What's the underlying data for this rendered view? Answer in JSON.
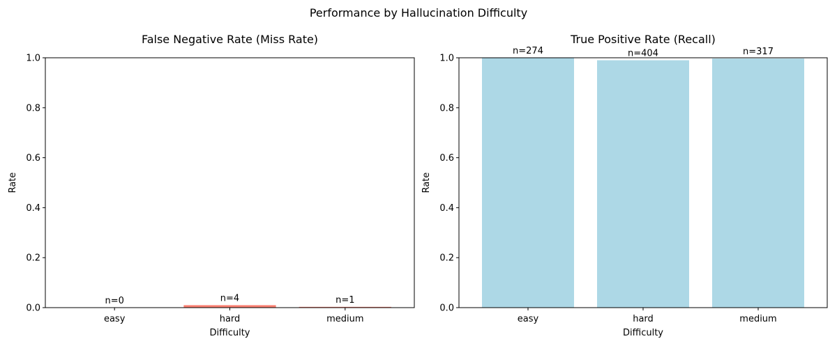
{
  "figure": {
    "title": "Performance by Hallucination Difficulty"
  },
  "chart_data": [
    {
      "type": "bar",
      "title": "False Negative Rate (Miss Rate)",
      "xlabel": "Difficulty",
      "ylabel": "Rate",
      "categories": [
        "easy",
        "hard",
        "medium"
      ],
      "values": [
        0.0,
        0.0099,
        0.0031
      ],
      "data_labels": [
        "n=0",
        "n=4",
        "n=1"
      ],
      "ylim": [
        0,
        1
      ],
      "yticks": [
        "0.0",
        "0.2",
        "0.4",
        "0.6",
        "0.8",
        "1.0"
      ],
      "bar_color": "#fa8072",
      "grid": false
    },
    {
      "type": "bar",
      "title": "True Positive Rate (Recall)",
      "xlabel": "Difficulty",
      "ylabel": "Rate",
      "categories": [
        "easy",
        "hard",
        "medium"
      ],
      "values": [
        1.0,
        0.9901,
        0.9969
      ],
      "data_labels": [
        "n=274",
        "n=404",
        "n=317"
      ],
      "ylim": [
        0,
        1
      ],
      "yticks": [
        "0.0",
        "0.2",
        "0.4",
        "0.6",
        "0.8",
        "1.0"
      ],
      "bar_color": "#add8e6",
      "grid": false
    }
  ]
}
